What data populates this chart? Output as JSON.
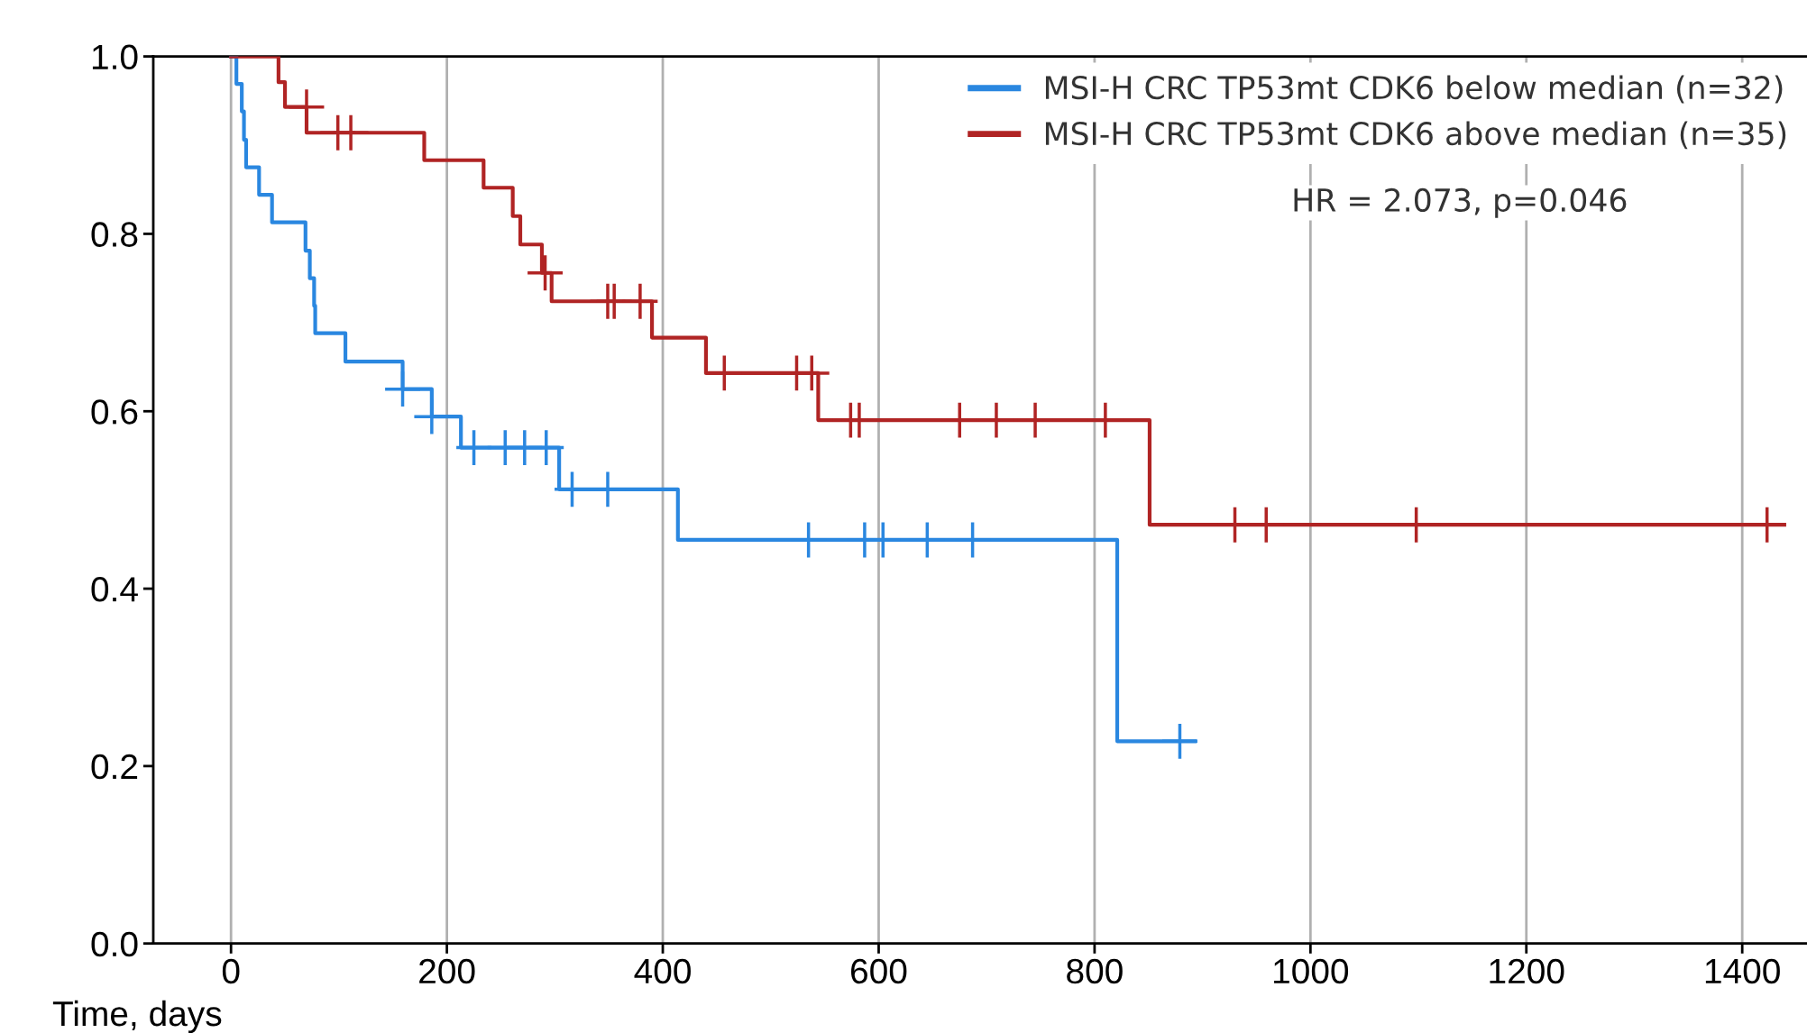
{
  "chart_data": {
    "type": "step",
    "xlabel": "Time, days",
    "annotations": [
      "HR = 2.073, p=0.046"
    ],
    "xlim": [
      -72,
      1460
    ],
    "ylim": [
      0.0,
      1.0
    ],
    "xticks": [
      0,
      200,
      400,
      600,
      800,
      1000,
      1200,
      1400
    ],
    "yticks": [
      {
        "value": 0.0,
        "label": "0.0"
      },
      {
        "value": 0.2,
        "label": "0.2"
      },
      {
        "value": 0.4,
        "label": "0.4"
      },
      {
        "value": 0.6,
        "label": "0.6"
      },
      {
        "value": 0.8,
        "label": "0.8"
      },
      {
        "value": 1.0,
        "label": "1.0"
      }
    ],
    "grid": "x",
    "legend": "top right",
    "series": [
      {
        "name": "MSI-H CRC TP53mt CDK6 below median (n=32)",
        "color": "#2a87e0",
        "x": [
          0,
          5,
          10,
          12,
          14,
          26,
          38,
          69,
          73,
          77,
          78,
          106,
          159,
          186,
          213,
          304,
          414,
          821,
          893
        ],
        "values": [
          1.0,
          0.969,
          0.938,
          0.906,
          0.875,
          0.844,
          0.813,
          0.781,
          0.75,
          0.719,
          0.688,
          0.656,
          0.625,
          0.594,
          0.559,
          0.512,
          0.455,
          0.228,
          0.228
        ]
      },
      {
        "name": "MSI-H CRC TP53mt CDK6 above median (n=35)",
        "color": "#b02424",
        "x": [
          0,
          44,
          50,
          70,
          179,
          234,
          261,
          268,
          288,
          297,
          390,
          440,
          544,
          851,
          1439
        ],
        "values": [
          1.0,
          0.971,
          0.943,
          0.914,
          0.883,
          0.852,
          0.82,
          0.788,
          0.756,
          0.724,
          0.683,
          0.643,
          0.59,
          0.472,
          0.472
        ]
      },
      {
        "type": "scatter",
        "marker": "cross",
        "color": "#2a87e0",
        "x": [
          159,
          186,
          225,
          254,
          272,
          292,
          316,
          349,
          535,
          587,
          604,
          645,
          687,
          879
        ],
        "values": [
          0.625,
          0.594,
          0.559,
          0.559,
          0.559,
          0.559,
          0.512,
          0.512,
          0.455,
          0.455,
          0.455,
          0.455,
          0.455,
          0.228
        ]
      },
      {
        "type": "scatter",
        "marker": "cross",
        "color": "#b02424",
        "x": [
          70,
          99,
          111,
          291,
          349,
          355,
          379,
          457,
          524,
          538,
          574,
          582,
          675,
          709,
          745,
          810,
          930,
          959,
          1098,
          1423
        ],
        "values": [
          0.943,
          0.914,
          0.914,
          0.756,
          0.724,
          0.724,
          0.724,
          0.643,
          0.643,
          0.643,
          0.59,
          0.59,
          0.59,
          0.59,
          0.59,
          0.59,
          0.472,
          0.472,
          0.472,
          0.472
        ]
      }
    ]
  }
}
